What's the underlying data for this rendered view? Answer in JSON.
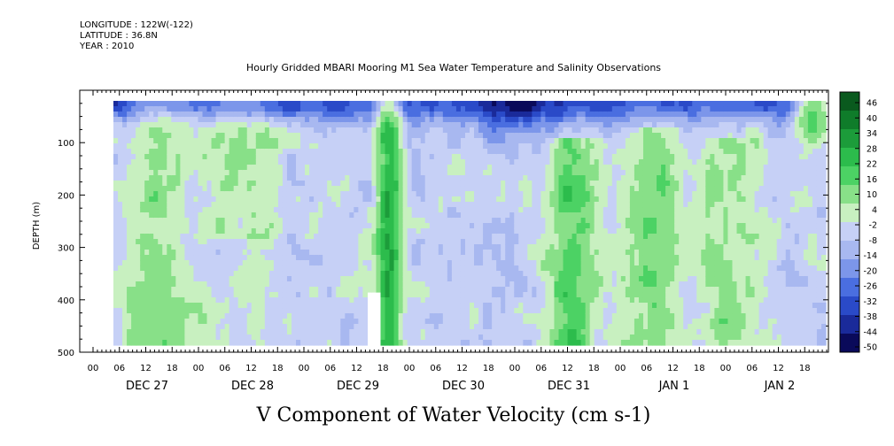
{
  "header": {
    "longitude": "LONGITUDE : 122W(-122)",
    "latitude": "LATITUDE : 36.8N",
    "year": "YEAR : 2010"
  },
  "chart_data": {
    "type": "heatmap",
    "title": "Hourly Gridded MBARI Mooring M1 Sea Water Temperature and Salinity Observations",
    "xlabel": "V Component of Water Velocity (cm s-1)",
    "ylabel": "DEPTH (m)",
    "colorbar": {
      "ticks": [
        "46",
        "40",
        "34",
        "28",
        "22",
        "16",
        "10",
        "4",
        "-2",
        "-8",
        "-14",
        "-20",
        "-26",
        "-32",
        "-38",
        "-44",
        "-50"
      ],
      "range": [
        -50,
        46
      ],
      "colors": [
        "#0a0a5a",
        "#1a2a9a",
        "#2a4ac8",
        "#4a6ee0",
        "#7c96ea",
        "#a8b8f0",
        "#c6d0f6",
        "#c8f0c0",
        "#88e088",
        "#4cd264",
        "#2cbc4c",
        "#1c9c3a",
        "#0f7c2a",
        "#0a5a1e"
      ]
    },
    "yaxis": {
      "ticks": [
        100,
        200,
        300,
        400,
        500
      ],
      "range": [
        0,
        500
      ],
      "inverted": true
    },
    "xaxis": {
      "hour_labels": [
        "00",
        "06",
        "12",
        "18",
        "00",
        "06",
        "12",
        "18",
        "00",
        "06",
        "12",
        "18",
        "00",
        "06",
        "12",
        "18",
        "00",
        "06",
        "12",
        "18",
        "00",
        "06",
        "12",
        "18",
        "00",
        "06",
        "12",
        "18"
      ],
      "day_labels": [
        "DEC 27",
        "DEC 28",
        "DEC 29",
        "DEC 30",
        "DEC 31",
        "JAN  1",
        "JAN  2"
      ]
    },
    "grid": false,
    "legend": "colorbar-right",
    "field_description_notes": [
      "Values range roughly -44 to +28 cm/s",
      "Strong negative (dark blue) near surface around Dec 30 18h - Dec 31 12h",
      "Positive (green) columns near Dec 29 12h-18h, Dec 31 18h - Jan 1 12h, Jan 1 18h - Jan 2 12h"
    ]
  }
}
